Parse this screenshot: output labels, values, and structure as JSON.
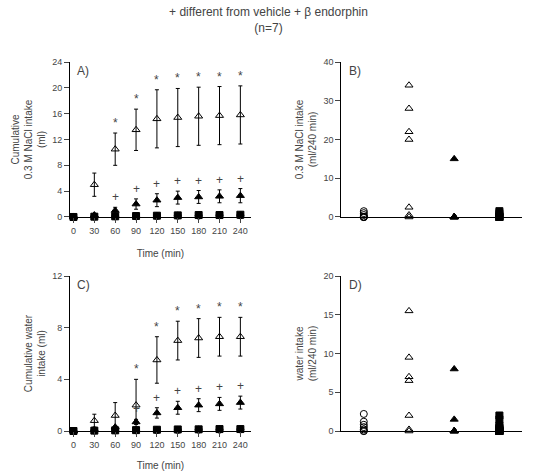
{
  "title": "+ different from vehicle + β endorphin",
  "subtitle": "(n=7)",
  "chart_data": [
    {
      "type": "scatter",
      "title": "A)",
      "x": [
        0,
        30,
        60,
        90,
        120,
        150,
        180,
        210,
        240
      ],
      "x_label": "Time (min)",
      "y_label": "Cumulative\n0.3 M NaCl intake\n(ml)",
      "xlim": [
        -5,
        255
      ],
      "xticks": [
        0,
        30,
        60,
        90,
        120,
        150,
        180,
        210,
        240
      ],
      "ylim": [
        0,
        24
      ],
      "yticks": [
        0,
        4,
        8,
        12,
        16,
        20,
        24
      ],
      "grid": false,
      "series": [
        {
          "color": "black",
          "marker": "triangle-up-open",
          "values": [
            0,
            5.0,
            10.5,
            13.5,
            15.2,
            15.4,
            15.6,
            15.7,
            15.8
          ],
          "error": [
            0,
            1.8,
            2.5,
            3.2,
            4.5,
            4.5,
            4.5,
            4.5,
            4.5
          ]
        },
        {
          "color": "black",
          "marker": "triangle-up",
          "values": [
            0,
            0.3,
            1.0,
            2.0,
            2.6,
            3.0,
            3.1,
            3.2,
            3.3
          ],
          "error": [
            0,
            0.2,
            0.5,
            0.8,
            1.0,
            1.0,
            1.0,
            1.0,
            1.1
          ]
        },
        {
          "color": "black",
          "marker": "square",
          "values": [
            0,
            0.05,
            0.1,
            0.15,
            0.2,
            0.25,
            0.3,
            0.3,
            0.35
          ],
          "error": [
            0,
            0.02,
            0.04,
            0.05,
            0.06,
            0.07,
            0.07,
            0.08,
            0.08
          ]
        },
        {
          "color": "black",
          "marker": "circle-open",
          "values": [
            0,
            0.05,
            0.1,
            0.1,
            0.15,
            0.2,
            0.2,
            0.25,
            0.25
          ],
          "error": [
            0,
            0.02,
            0.03,
            0.04,
            0.05,
            0.05,
            0.06,
            0.06,
            0.07
          ]
        }
      ],
      "annotations": [
        {
          "text": "*",
          "x": 60,
          "y": 13.0
        },
        {
          "text": "*",
          "x": 90,
          "y": 16.7
        },
        {
          "text": "*",
          "x": 120,
          "y": 19.7
        },
        {
          "text": "*",
          "x": 150,
          "y": 19.9
        },
        {
          "text": "*",
          "x": 180,
          "y": 20.1
        },
        {
          "text": "*",
          "x": 210,
          "y": 20.2
        },
        {
          "text": "*",
          "x": 240,
          "y": 20.3
        },
        {
          "text": "+",
          "x": 60,
          "y": 1.5
        },
        {
          "text": "+",
          "x": 90,
          "y": 2.8
        },
        {
          "text": "+",
          "x": 120,
          "y": 3.6
        },
        {
          "text": "+",
          "x": 150,
          "y": 4.0
        },
        {
          "text": "+",
          "x": 180,
          "y": 4.1
        },
        {
          "text": "+",
          "x": 210,
          "y": 4.2
        },
        {
          "text": "+",
          "x": 240,
          "y": 4.4
        }
      ]
    },
    {
      "type": "scatter",
      "title": "B)",
      "y_label": "0.3 M NaCl intake\n(ml/240 min)",
      "xlim": [
        -0.5,
        3.5
      ],
      "xticks": [],
      "ylim": [
        0,
        40
      ],
      "yticks": [
        0,
        10,
        20,
        30,
        40
      ],
      "tick_labels": "y",
      "grid": false,
      "series": [
        {
          "color": "black",
          "marker": "circle-open",
          "x": [
            0,
            0,
            0,
            0,
            0,
            0,
            0
          ],
          "values": [
            0,
            0,
            0,
            0,
            0.5,
            1.0,
            1.5
          ]
        },
        {
          "color": "black",
          "marker": "triangle-up-open",
          "x": [
            1,
            1,
            1,
            1,
            1,
            1,
            1
          ],
          "values": [
            0,
            0.5,
            2.5,
            20.0,
            22.0,
            28.0,
            34.0
          ]
        },
        {
          "color": "black",
          "marker": "triangle-up",
          "x": [
            2,
            2,
            2,
            2,
            2,
            2,
            2
          ],
          "values": [
            0,
            0,
            0,
            0,
            0,
            0,
            15.0
          ]
        },
        {
          "color": "black",
          "marker": "square",
          "x": [
            3,
            3,
            3,
            3,
            3,
            3,
            3
          ],
          "values": [
            0,
            0,
            0,
            0,
            0.5,
            1.0,
            1.5
          ]
        }
      ]
    },
    {
      "type": "scatter",
      "title": "C)",
      "x": [
        0,
        30,
        60,
        90,
        120,
        150,
        180,
        210,
        240
      ],
      "x_label": "Time (min)",
      "y_label": "Cumulative water\nintake (ml)",
      "xlim": [
        -5,
        255
      ],
      "xticks": [
        0,
        30,
        60,
        90,
        120,
        150,
        180,
        210,
        240
      ],
      "ylim": [
        0,
        12
      ],
      "yticks": [
        0,
        4,
        8,
        12
      ],
      "grid": false,
      "series": [
        {
          "color": "black",
          "marker": "triangle-up-open",
          "values": [
            0,
            0.8,
            1.2,
            2.0,
            5.5,
            7.0,
            7.2,
            7.3,
            7.3
          ],
          "error": [
            0,
            0.5,
            1.0,
            2.0,
            1.8,
            1.5,
            1.5,
            1.5,
            1.5
          ]
        },
        {
          "color": "black",
          "marker": "triangle-up",
          "values": [
            0,
            0.1,
            0.3,
            0.7,
            1.4,
            1.8,
            2.0,
            2.1,
            2.2
          ],
          "error": [
            0,
            0.05,
            0.1,
            0.2,
            0.4,
            0.5,
            0.5,
            0.5,
            0.5
          ]
        },
        {
          "color": "black",
          "marker": "square",
          "values": [
            0,
            0.03,
            0.05,
            0.07,
            0.1,
            0.12,
            0.13,
            0.15,
            0.15
          ],
          "error": [
            0,
            0.01,
            0.02,
            0.03,
            0.03,
            0.04,
            0.04,
            0.05,
            0.05
          ]
        },
        {
          "color": "black",
          "marker": "circle-open",
          "values": [
            0,
            0.03,
            0.05,
            0.05,
            0.07,
            0.08,
            0.1,
            0.1,
            0.12
          ],
          "error": [
            0,
            0.01,
            0.02,
            0.02,
            0.02,
            0.03,
            0.03,
            0.04,
            0.04
          ]
        }
      ],
      "annotations": [
        {
          "text": "*",
          "x": 90,
          "y": 4.0
        },
        {
          "text": "*",
          "x": 120,
          "y": 7.3
        },
        {
          "text": "*",
          "x": 150,
          "y": 8.5
        },
        {
          "text": "*",
          "x": 180,
          "y": 8.7
        },
        {
          "text": "*",
          "x": 210,
          "y": 8.8
        },
        {
          "text": "*",
          "x": 240,
          "y": 8.8
        },
        {
          "text": "+",
          "x": 90,
          "y": 0.9
        },
        {
          "text": "+",
          "x": 120,
          "y": 1.8
        },
        {
          "text": "+",
          "x": 150,
          "y": 2.3
        },
        {
          "text": "+",
          "x": 180,
          "y": 2.5
        },
        {
          "text": "+",
          "x": 210,
          "y": 2.6
        },
        {
          "text": "+",
          "x": 240,
          "y": 2.7
        }
      ]
    },
    {
      "type": "scatter",
      "title": "D)",
      "y_label": "water intake\n(ml/240 min)",
      "xlim": [
        -0.5,
        3.5
      ],
      "xticks": [],
      "ylim": [
        0,
        20
      ],
      "yticks": [
        0,
        5,
        10,
        15,
        20
      ],
      "tick_labels": "y",
      "grid": false,
      "series": [
        {
          "color": "black",
          "marker": "circle-open",
          "x": [
            0,
            0,
            0,
            0,
            0,
            0,
            0
          ],
          "values": [
            0,
            0,
            0.2,
            0.5,
            0.8,
            1.2,
            2.2
          ]
        },
        {
          "color": "black",
          "marker": "triangle-up-open",
          "x": [
            1,
            1,
            1,
            1,
            1,
            1,
            1
          ],
          "values": [
            0,
            0.2,
            2.0,
            6.5,
            7.0,
            9.5,
            15.5
          ]
        },
        {
          "color": "black",
          "marker": "triangle-up",
          "x": [
            2,
            2,
            2,
            2,
            2,
            2,
            2
          ],
          "values": [
            0,
            0,
            0,
            0,
            0,
            1.5,
            8.0
          ]
        },
        {
          "color": "black",
          "marker": "square",
          "x": [
            3,
            3,
            3,
            3,
            3,
            3,
            3,
            3,
            3,
            3,
            3,
            3
          ],
          "values": [
            0,
            0,
            0,
            0,
            0,
            0,
            0.2,
            0.3,
            0.5,
            0.7,
            1.5,
            2.0
          ]
        }
      ]
    }
  ]
}
